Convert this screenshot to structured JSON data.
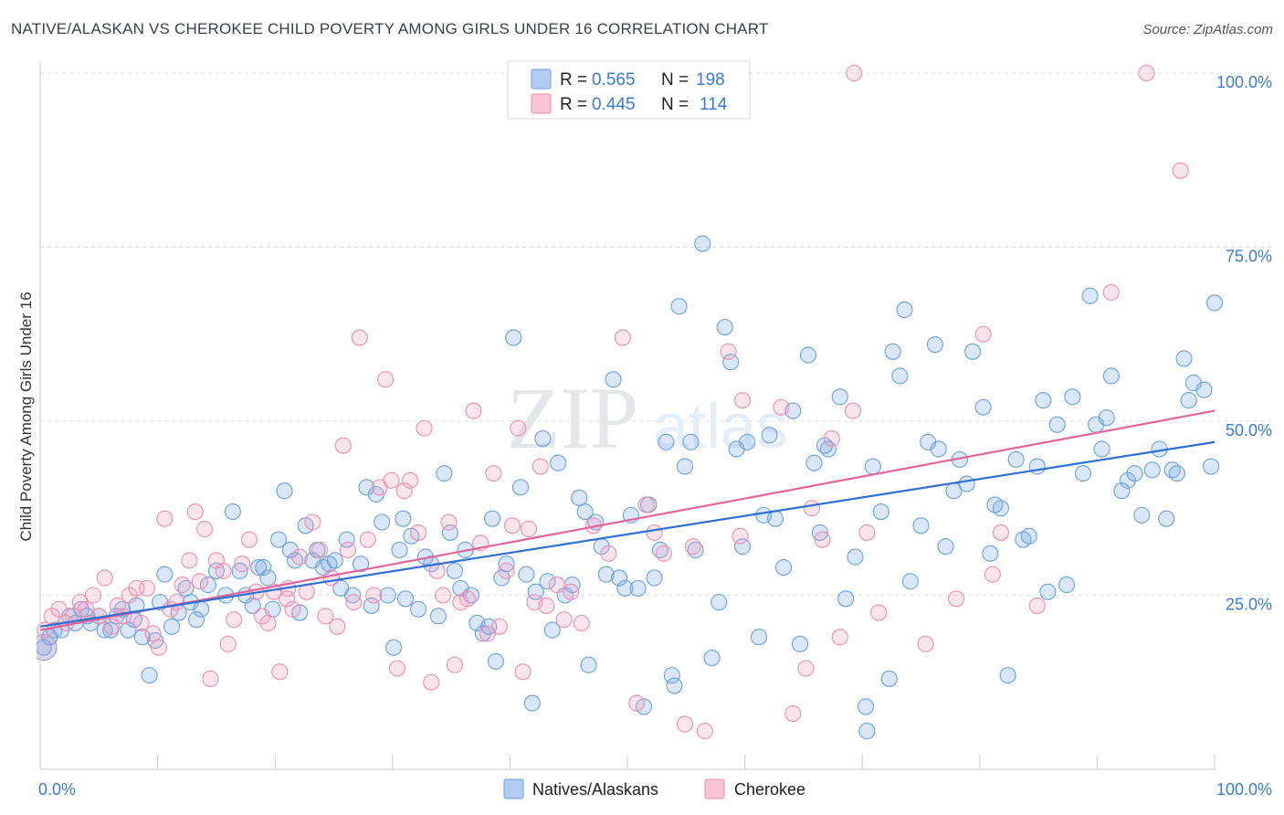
{
  "title": "NATIVE/ALASKAN VS CHEROKEE CHILD POVERTY AMONG GIRLS UNDER 16 CORRELATION CHART",
  "source": "Source: ZipAtlas.com",
  "watermark": "ZIPatlas",
  "colors": {
    "natives": "#6aa0e0",
    "natives_fill": "rgba(120,168,230,0.28)",
    "natives_line": "#2f6fd0",
    "cherokee": "#ec8fb0",
    "cherokee_fill": "rgba(240,150,185,0.25)",
    "cherokee_line": "#e0669a",
    "tick": "#3a7bd5"
  },
  "legend": {
    "r_label": "R =",
    "n_label": "N =",
    "rows": [
      {
        "r": "0.565",
        "n": "198"
      },
      {
        "r": "0.445",
        "n": "114"
      }
    ]
  },
  "chart_data": {
    "type": "scatter",
    "title": "NATIVE/ALASKAN VS CHEROKEE CHILD POVERTY AMONG GIRLS UNDER 16 CORRELATION CHART",
    "xlabel": "",
    "ylabel": "Child Poverty Among Girls Under 16",
    "xlim": [
      0,
      100
    ],
    "ylim": [
      0,
      103
    ],
    "x_tick_labels": [
      "0.0%",
      "100.0%"
    ],
    "y_ticks": [
      25,
      50,
      75,
      100
    ],
    "y_tick_labels": [
      "25.0%",
      "50.0%",
      "75.0%",
      "100.0%"
    ],
    "grid": true,
    "legend_position": "top-center",
    "series": [
      {
        "name": "Natives/Alaskans",
        "r": 0.565,
        "n": 198,
        "trend": {
          "x": [
            0,
            100
          ],
          "y": [
            20.5,
            47.0
          ]
        },
        "points": [
          [
            0.3,
            17.5
          ],
          [
            0.8,
            19
          ],
          [
            1.2,
            20
          ],
          [
            1.8,
            20
          ],
          [
            2.5,
            22
          ],
          [
            3,
            21
          ],
          [
            3.5,
            23
          ],
          [
            4,
            22
          ],
          [
            4.3,
            21
          ],
          [
            5,
            22
          ],
          [
            5.5,
            20
          ],
          [
            6,
            20
          ],
          [
            6.5,
            22
          ],
          [
            7,
            23
          ],
          [
            7.5,
            20
          ],
          [
            8,
            21.5
          ],
          [
            8.7,
            19
          ],
          [
            9.3,
            13.5
          ],
          [
            9.8,
            18.5
          ],
          [
            10.2,
            24
          ],
          [
            10.6,
            28
          ],
          [
            11.2,
            20.5
          ],
          [
            11.8,
            22.5
          ],
          [
            12.4,
            26
          ],
          [
            12.8,
            24
          ],
          [
            13.3,
            21.5
          ],
          [
            13.7,
            23
          ],
          [
            14.3,
            26.5
          ],
          [
            15,
            28.5
          ],
          [
            15.8,
            25
          ],
          [
            16.4,
            37
          ],
          [
            17,
            28.5
          ],
          [
            17.5,
            25
          ],
          [
            18.1,
            23.5
          ],
          [
            18.6,
            29
          ],
          [
            19,
            29
          ],
          [
            19.4,
            27.5
          ],
          [
            19.8,
            23
          ],
          [
            20.3,
            33
          ],
          [
            20.8,
            40
          ],
          [
            21.3,
            31.5
          ],
          [
            21.7,
            30
          ],
          [
            22.1,
            22.5
          ],
          [
            22.6,
            35
          ],
          [
            23.2,
            30
          ],
          [
            23.6,
            31.5
          ],
          [
            24.1,
            29
          ],
          [
            24.6,
            29.5
          ],
          [
            25.1,
            30
          ],
          [
            25.6,
            26
          ],
          [
            26.1,
            33
          ],
          [
            26.6,
            25
          ],
          [
            27.3,
            29.5
          ],
          [
            27.8,
            40.5
          ],
          [
            28.2,
            23.5
          ],
          [
            28.6,
            39.5
          ],
          [
            29.1,
            35.5
          ],
          [
            29.6,
            25
          ],
          [
            30.1,
            17.5
          ],
          [
            30.6,
            31.5
          ],
          [
            31.1,
            24.5
          ],
          [
            31.6,
            33.5
          ],
          [
            32.2,
            23
          ],
          [
            32.8,
            30.5
          ],
          [
            33.3,
            29.5
          ],
          [
            33.9,
            22
          ],
          [
            34.4,
            42.5
          ],
          [
            34.9,
            34
          ],
          [
            35.3,
            28.5
          ],
          [
            35.8,
            26
          ],
          [
            36.2,
            31.5
          ],
          [
            36.7,
            25
          ],
          [
            37.2,
            21
          ],
          [
            37.7,
            19.5
          ],
          [
            38.2,
            20.5
          ],
          [
            38.8,
            15.5
          ],
          [
            39.3,
            27.5
          ],
          [
            39.7,
            29.5
          ],
          [
            40.3,
            62
          ],
          [
            40.9,
            40.5
          ],
          [
            41.4,
            28
          ],
          [
            41.9,
            9.5
          ],
          [
            42.2,
            25.5
          ],
          [
            42.8,
            47.5
          ],
          [
            43.2,
            27
          ],
          [
            43.6,
            20
          ],
          [
            44.1,
            44
          ],
          [
            44.7,
            25
          ],
          [
            45.3,
            26.5
          ],
          [
            45.9,
            39
          ],
          [
            46.4,
            37
          ],
          [
            46.7,
            15
          ],
          [
            47.3,
            35.5
          ],
          [
            47.8,
            32
          ],
          [
            48.2,
            28
          ],
          [
            48.8,
            56
          ],
          [
            49.3,
            27.5
          ],
          [
            49.8,
            26
          ],
          [
            50.3,
            36.5
          ],
          [
            50.9,
            26
          ],
          [
            51.4,
            9
          ],
          [
            51.8,
            38
          ],
          [
            52.3,
            27.5
          ],
          [
            52.8,
            31.5
          ],
          [
            53.3,
            47
          ],
          [
            53.8,
            13.5
          ],
          [
            54.4,
            66.5
          ],
          [
            54.9,
            43.5
          ],
          [
            55.4,
            47
          ],
          [
            55.8,
            31.5
          ],
          [
            56.4,
            75.5
          ],
          [
            57.2,
            16
          ],
          [
            57.8,
            24
          ],
          [
            58.3,
            63.5
          ],
          [
            58.8,
            58.5
          ],
          [
            59.3,
            46
          ],
          [
            59.8,
            32
          ],
          [
            60.2,
            47
          ],
          [
            61.2,
            19
          ],
          [
            61.6,
            36.5
          ],
          [
            62.1,
            48
          ],
          [
            62.6,
            36
          ],
          [
            63.3,
            29
          ],
          [
            64.1,
            51.5
          ],
          [
            64.7,
            18
          ],
          [
            65.4,
            59.5
          ],
          [
            65.9,
            44
          ],
          [
            66.4,
            34
          ],
          [
            67.1,
            46
          ],
          [
            68.1,
            53.5
          ],
          [
            68.6,
            24.5
          ],
          [
            69.4,
            30.5
          ],
          [
            70.4,
            5.5
          ],
          [
            70.9,
            43.5
          ],
          [
            71.6,
            37
          ],
          [
            72.6,
            60
          ],
          [
            73.2,
            56.5
          ],
          [
            73.6,
            66
          ],
          [
            74.1,
            27
          ],
          [
            75,
            35
          ],
          [
            75.6,
            47
          ],
          [
            76.2,
            61
          ],
          [
            76.5,
            46
          ],
          [
            77.1,
            32
          ],
          [
            77.8,
            40
          ],
          [
            78.3,
            44.5
          ],
          [
            78.9,
            41
          ],
          [
            79.4,
            60
          ],
          [
            80.3,
            52
          ],
          [
            80.9,
            31
          ],
          [
            81.3,
            38
          ],
          [
            81.8,
            37.5
          ],
          [
            82.4,
            13.5
          ],
          [
            83.1,
            44.5
          ],
          [
            83.7,
            33
          ],
          [
            84.2,
            33.5
          ],
          [
            84.9,
            43.5
          ],
          [
            85.4,
            53
          ],
          [
            85.8,
            25.5
          ],
          [
            86.6,
            49.5
          ],
          [
            87.4,
            26.5
          ],
          [
            87.9,
            53.5
          ],
          [
            88.8,
            42.5
          ],
          [
            89.4,
            68
          ],
          [
            89.9,
            49.5
          ],
          [
            90.4,
            46
          ],
          [
            90.8,
            50.5
          ],
          [
            91.2,
            56.5
          ],
          [
            92.1,
            40
          ],
          [
            92.6,
            41.5
          ],
          [
            93.2,
            42.5
          ],
          [
            93.8,
            36.5
          ],
          [
            94.7,
            43
          ],
          [
            95.3,
            46
          ],
          [
            95.9,
            36
          ],
          [
            96.4,
            43
          ],
          [
            96.8,
            42.5
          ],
          [
            97.4,
            59
          ],
          [
            97.8,
            53
          ],
          [
            98.2,
            55.5
          ],
          [
            99.1,
            54.5
          ],
          [
            99.7,
            43.5
          ],
          [
            100,
            67
          ],
          [
            66.8,
            46.5
          ],
          [
            72.3,
            13
          ],
          [
            70.3,
            9
          ],
          [
            30.9,
            36
          ],
          [
            38.5,
            36
          ],
          [
            54,
            12
          ],
          [
            8.2,
            23.5
          ]
        ]
      },
      {
        "name": "Cherokee",
        "r": 0.445,
        "n": 114,
        "trend": {
          "x": [
            0,
            100
          ],
          "y": [
            20.0,
            51.5
          ]
        },
        "points": [
          [
            0.4,
            20
          ],
          [
            1,
            22
          ],
          [
            1.6,
            23
          ],
          [
            2.2,
            21
          ],
          [
            2.8,
            22
          ],
          [
            3.4,
            24
          ],
          [
            3.9,
            23
          ],
          [
            4.5,
            25
          ],
          [
            5,
            22
          ],
          [
            5.5,
            27.5
          ],
          [
            6.1,
            20.5
          ],
          [
            6.6,
            23.5
          ],
          [
            7.1,
            22
          ],
          [
            7.6,
            25
          ],
          [
            8.2,
            26
          ],
          [
            8.6,
            21
          ],
          [
            9.1,
            26
          ],
          [
            9.6,
            19.5
          ],
          [
            10.1,
            17.5
          ],
          [
            10.6,
            36
          ],
          [
            11.1,
            23
          ],
          [
            11.6,
            24
          ],
          [
            12.1,
            26.5
          ],
          [
            12.7,
            30
          ],
          [
            13.2,
            37
          ],
          [
            13.6,
            27
          ],
          [
            14,
            34.5
          ],
          [
            14.5,
            13
          ],
          [
            15,
            30
          ],
          [
            15.6,
            28.5
          ],
          [
            16,
            18
          ],
          [
            16.5,
            21.5
          ],
          [
            17.2,
            29.5
          ],
          [
            17.8,
            33
          ],
          [
            18.4,
            25.5
          ],
          [
            18.9,
            22
          ],
          [
            19.4,
            21
          ],
          [
            19.9,
            25.5
          ],
          [
            20.4,
            14
          ],
          [
            21,
            24.5
          ],
          [
            21.5,
            23
          ],
          [
            22.1,
            30.5
          ],
          [
            22.7,
            25.5
          ],
          [
            23.2,
            35.5
          ],
          [
            23.8,
            31.5
          ],
          [
            24.3,
            22
          ],
          [
            24.8,
            27.5
          ],
          [
            25.3,
            20.5
          ],
          [
            25.8,
            46.5
          ],
          [
            26.2,
            31.5
          ],
          [
            26.7,
            24
          ],
          [
            27.2,
            62
          ],
          [
            27.9,
            33
          ],
          [
            28.4,
            25
          ],
          [
            28.9,
            40.5
          ],
          [
            29.4,
            56
          ],
          [
            29.9,
            41.5
          ],
          [
            30.4,
            14.5
          ],
          [
            31,
            40
          ],
          [
            31.5,
            41.5
          ],
          [
            32.2,
            34
          ],
          [
            32.7,
            49
          ],
          [
            33.3,
            12.5
          ],
          [
            33.8,
            28.5
          ],
          [
            34.3,
            25
          ],
          [
            34.8,
            35.5
          ],
          [
            35.3,
            15
          ],
          [
            35.8,
            24
          ],
          [
            36.4,
            24.5
          ],
          [
            36.9,
            51.5
          ],
          [
            37.5,
            32.5
          ],
          [
            38.1,
            19.5
          ],
          [
            38.6,
            42.5
          ],
          [
            39.1,
            20.5
          ],
          [
            39.7,
            28.5
          ],
          [
            40.2,
            35
          ],
          [
            40.7,
            49
          ],
          [
            41.1,
            14
          ],
          [
            41.6,
            34.5
          ],
          [
            42.1,
            24
          ],
          [
            42.6,
            43.5
          ],
          [
            43.1,
            23.5
          ],
          [
            44,
            26.5
          ],
          [
            44.6,
            21.5
          ],
          [
            45.2,
            25.5
          ],
          [
            46.1,
            21
          ],
          [
            47.1,
            35
          ],
          [
            48.4,
            31
          ],
          [
            49.6,
            62
          ],
          [
            50.8,
            9.5
          ],
          [
            51.6,
            38
          ],
          [
            52.3,
            34
          ],
          [
            53.1,
            31
          ],
          [
            54.9,
            6.5
          ],
          [
            55.6,
            32
          ],
          [
            56.6,
            5.5
          ],
          [
            58.6,
            60
          ],
          [
            59.6,
            33.5
          ],
          [
            63.1,
            52
          ],
          [
            64.1,
            8
          ],
          [
            65.2,
            14.5
          ],
          [
            65.7,
            37.5
          ],
          [
            66.6,
            33
          ],
          [
            67.4,
            47.5
          ],
          [
            68.1,
            19
          ],
          [
            69.2,
            51.5
          ],
          [
            70.4,
            34
          ],
          [
            71.4,
            22.5
          ],
          [
            75.4,
            18
          ],
          [
            78,
            24.5
          ],
          [
            80.3,
            62.5
          ],
          [
            81.1,
            28
          ],
          [
            81.8,
            34
          ],
          [
            84.9,
            23.5
          ],
          [
            91.2,
            68.5
          ],
          [
            94.2,
            100
          ],
          [
            97.1,
            86
          ],
          [
            69.3,
            100
          ],
          [
            21.1,
            26
          ],
          [
            59.8,
            53
          ]
        ]
      }
    ]
  },
  "bottom_legend": [
    "Natives/Alaskans",
    "Cherokee"
  ]
}
